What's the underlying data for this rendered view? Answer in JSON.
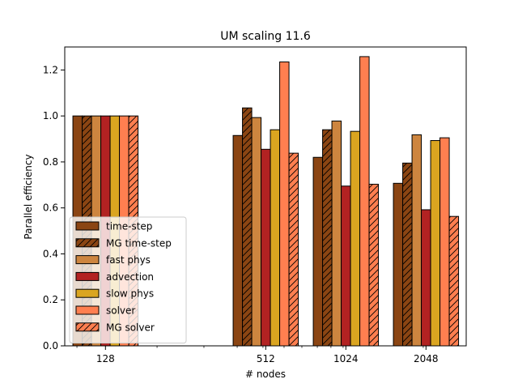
{
  "chart_data": {
    "type": "bar",
    "title": "UM scaling 11.6",
    "xlabel": "# nodes",
    "ylabel": "Parallel efficiency",
    "ylim": [
      0,
      1.3
    ],
    "yticks": [
      0.0,
      0.2,
      0.4,
      0.6,
      0.8,
      1.0,
      1.2
    ],
    "ytick_labels": [
      "0.0",
      "0.2",
      "0.4",
      "0.6",
      "0.8",
      "1.0",
      "1.2"
    ],
    "categories": [
      "128",
      "512",
      "1024",
      "2048"
    ],
    "x_scale": "log2",
    "x": [
      128,
      512,
      1024,
      2048
    ],
    "xlim": [
      90,
      2900
    ],
    "legend_position": "lower-left",
    "series": [
      {
        "name": "time-step",
        "color": "#8B4513",
        "hatch": false,
        "values": [
          1.0,
          0.915,
          0.82,
          0.707
        ]
      },
      {
        "name": "MG time-step",
        "color": "#8B4513",
        "hatch": true,
        "values": [
          1.0,
          1.035,
          0.94,
          0.795
        ]
      },
      {
        "name": "fast phys",
        "color": "#CD853F",
        "hatch": false,
        "values": [
          1.0,
          0.993,
          0.978,
          0.918
        ]
      },
      {
        "name": "advection",
        "color": "#B22222",
        "hatch": false,
        "values": [
          1.0,
          0.855,
          0.695,
          0.592
        ]
      },
      {
        "name": "slow phys",
        "color": "#DAA520",
        "hatch": false,
        "values": [
          1.0,
          0.94,
          0.933,
          0.893
        ]
      },
      {
        "name": "solver",
        "color": "#FF7F50",
        "hatch": false,
        "values": [
          1.0,
          1.235,
          1.258,
          0.905
        ]
      },
      {
        "name": "MG solver",
        "color": "#FF7F50",
        "hatch": true,
        "values": [
          1.0,
          0.838,
          0.703,
          0.563
        ]
      }
    ]
  }
}
